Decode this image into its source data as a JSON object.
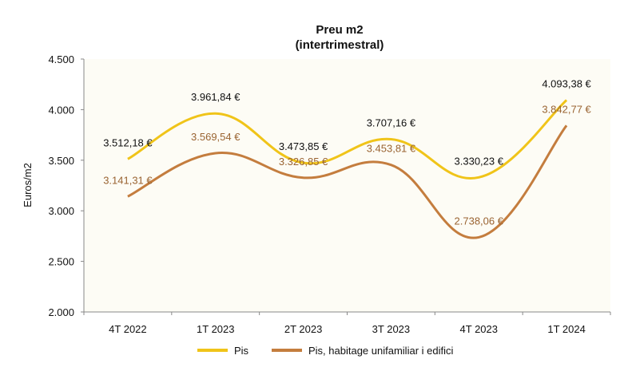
{
  "chart_data": {
    "type": "line",
    "title": "Preu m2",
    "subtitle": "(intertrimestral)",
    "xlabel": "",
    "ylabel": "Euros/m2",
    "ylim": [
      2000,
      4500
    ],
    "yticks": [
      "2.000",
      "2.500",
      "3.000",
      "3.500",
      "4.000",
      "4.500"
    ],
    "ytick_values": [
      2000,
      2500,
      3000,
      3500,
      4000,
      4500
    ],
    "categories": [
      "4T 2022",
      "1T 2023",
      "2T 2023",
      "3T 2023",
      "4T 2023",
      "1T 2024"
    ],
    "grid": false,
    "smooth": true,
    "legend_position": "bottom",
    "plot_background": "#fdfcf5",
    "series": [
      {
        "name": "Pis",
        "color": "#f0c419",
        "label_color": "#111111",
        "values": [
          3512.18,
          3961.84,
          3473.85,
          3707.16,
          3330.23,
          4093.38
        ],
        "labels": [
          "3.512,18 €",
          "3.961,84 €",
          "3.473,85 €",
          "3.707,16 €",
          "3.330,23 €",
          "4.093,38 €"
        ]
      },
      {
        "name": "Pis, habitage unifamiliar i edifici",
        "color": "#c47d3e",
        "label_color": "#9a6432",
        "values": [
          3141.31,
          3569.54,
          3326.85,
          3453.81,
          2738.06,
          3842.77
        ],
        "labels": [
          "3.141,31 €",
          "3.569,54 €",
          "3.326,85 €",
          "3.453,81 €",
          "2.738,06 €",
          "3.842,77 €"
        ]
      }
    ]
  }
}
